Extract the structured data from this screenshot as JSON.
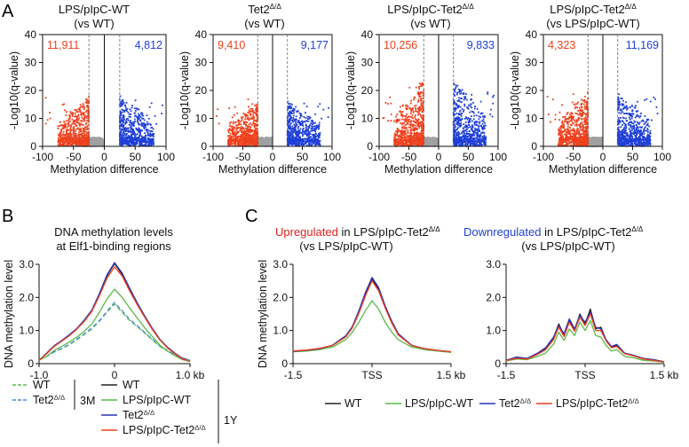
{
  "panel_letters": [
    "A",
    "B",
    "C"
  ],
  "chart_data": [
    {
      "type": "scatter",
      "id": "volcano-1",
      "title": "LPS/pIpC-WT",
      "title_sub": "(vs WT)",
      "xlabel": "Methylation difference",
      "ylabel": "-Log10(q-value)",
      "xlim": [
        -100,
        100
      ],
      "ylim": [
        0,
        40
      ],
      "xticks": [
        -100,
        -50,
        0,
        50,
        100
      ],
      "yticks": [
        0,
        10,
        20,
        30,
        40
      ],
      "count_left": "11,911",
      "count_right": "4,812",
      "color_left": "#f0401c",
      "color_right": "#1f3fd8",
      "color_ns": "#a0a0a0",
      "cutoff_diff": 25,
      "spread": 0.55
    },
    {
      "type": "scatter",
      "id": "volcano-2",
      "title": "Tet2Δ/Δ",
      "title_sub": "(vs WT)",
      "xlabel": "Methylation difference",
      "ylabel": "-Log10(q-value)",
      "xlim": [
        -100,
        100
      ],
      "ylim": [
        0,
        40
      ],
      "xticks": [
        -100,
        -50,
        0,
        50,
        100
      ],
      "yticks": [
        0,
        10,
        20,
        30,
        40
      ],
      "count_left": "9,410",
      "count_right": "9,177",
      "color_left": "#f0401c",
      "color_right": "#1f3fd8",
      "color_ns": "#a0a0a0",
      "cutoff_diff": 25,
      "spread": 0.5
    },
    {
      "type": "scatter",
      "id": "volcano-3",
      "title": "LPS/pIpC-Tet2Δ/Δ",
      "title_sub": "(vs WT)",
      "xlabel": "Methylation difference",
      "ylabel": "-Log10(q-value)",
      "xlim": [
        -100,
        100
      ],
      "ylim": [
        0,
        40
      ],
      "xticks": [
        -100,
        -50,
        0,
        50,
        100
      ],
      "yticks": [
        0,
        10,
        20,
        30,
        40
      ],
      "count_left": "10,256",
      "count_right": "9,833",
      "color_left": "#f0401c",
      "color_right": "#1f3fd8",
      "color_ns": "#a0a0a0",
      "cutoff_diff": 25,
      "spread": 0.75
    },
    {
      "type": "scatter",
      "id": "volcano-4",
      "title": "LPS/pIpC-Tet2Δ/Δ",
      "title_sub": "(vs LPS/pIpC-WT)",
      "xlabel": "Methylation difference",
      "ylabel": "-Log10(q-value)",
      "xlim": [
        -100,
        100
      ],
      "ylim": [
        0,
        40
      ],
      "xticks": [
        -100,
        -50,
        0,
        50,
        100
      ],
      "yticks": [
        0,
        10,
        20,
        30,
        40
      ],
      "count_left": "4,323",
      "count_right": "11,169",
      "color_left": "#f0401c",
      "color_right": "#1f3fd8",
      "color_ns": "#a0a0a0",
      "cutoff_diff": 25,
      "spread": 0.6
    },
    {
      "type": "line",
      "id": "profile-b",
      "title_line1": "DNA methylation levels",
      "title_line2": "at Elf1-binding regions",
      "ylabel": "DNA methylation level",
      "xlim": [
        -1.0,
        1.0
      ],
      "ylim": [
        0,
        3.0
      ],
      "xticks": [
        -1.0,
        0,
        1.0
      ],
      "xtick_labels": [
        "-1.0",
        "0",
        "1.0 kb"
      ],
      "yticks": [
        0,
        1.0,
        2.0,
        3.0
      ],
      "ytick_labels": [
        "0",
        "1.0",
        "2.0",
        "3.0"
      ],
      "x": [
        -1.0,
        -0.9,
        -0.8,
        -0.7,
        -0.6,
        -0.5,
        -0.4,
        -0.3,
        -0.2,
        -0.1,
        0.0,
        0.1,
        0.2,
        0.3,
        0.4,
        0.5,
        0.6,
        0.7,
        0.8,
        0.9,
        1.0
      ],
      "series": [
        {
          "name": "WT (3M)",
          "color": "#5cb84a",
          "dash": true,
          "values": [
            0.12,
            0.22,
            0.35,
            0.45,
            0.57,
            0.72,
            0.88,
            1.05,
            1.28,
            1.55,
            1.8,
            1.55,
            1.3,
            1.12,
            0.92,
            0.72,
            0.52,
            0.38,
            0.26,
            0.16,
            0.1
          ]
        },
        {
          "name": "Tet2Δ/Δ (3M)",
          "color": "#3f8fd8",
          "dash": true,
          "values": [
            0.12,
            0.22,
            0.36,
            0.46,
            0.58,
            0.74,
            0.9,
            1.08,
            1.3,
            1.58,
            1.85,
            1.6,
            1.34,
            1.15,
            0.94,
            0.74,
            0.54,
            0.4,
            0.27,
            0.17,
            0.11
          ]
        },
        {
          "name": "WT (1Y)",
          "color": "#222222",
          "dash": false,
          "values": [
            0.1,
            0.3,
            0.52,
            0.68,
            0.85,
            1.05,
            1.3,
            1.6,
            2.1,
            2.65,
            3.02,
            2.7,
            2.25,
            1.82,
            1.42,
            1.05,
            0.72,
            0.48,
            0.3,
            0.14,
            0.08
          ]
        },
        {
          "name": "LPS/pIpC-WT (1Y)",
          "color": "#5cb84a",
          "dash": false,
          "values": [
            0.1,
            0.22,
            0.4,
            0.52,
            0.65,
            0.8,
            0.98,
            1.2,
            1.55,
            1.95,
            2.25,
            2.0,
            1.68,
            1.38,
            1.08,
            0.82,
            0.56,
            0.38,
            0.24,
            0.12,
            0.06
          ]
        },
        {
          "name": "Tet2Δ/Δ (1Y)",
          "color": "#2834b8",
          "dash": false,
          "values": [
            0.1,
            0.32,
            0.54,
            0.7,
            0.87,
            1.06,
            1.32,
            1.62,
            2.12,
            2.68,
            3.05,
            2.74,
            2.28,
            1.84,
            1.44,
            1.07,
            0.74,
            0.5,
            0.32,
            0.16,
            0.08
          ]
        },
        {
          "name": "LPS/pIpC-Tet2Δ/Δ (1Y)",
          "color": "#f0401c",
          "dash": false,
          "values": [
            0.1,
            0.3,
            0.52,
            0.68,
            0.84,
            1.04,
            1.28,
            1.58,
            2.05,
            2.58,
            2.92,
            2.65,
            2.2,
            1.78,
            1.4,
            1.03,
            0.72,
            0.48,
            0.3,
            0.14,
            0.08
          ]
        }
      ]
    },
    {
      "type": "line",
      "id": "profile-c-up",
      "title_red": "Upregulated",
      "title_rest": " in LPS/pIpC-Tet2Δ/Δ",
      "title_line2": "(vs LPS/pIpC-WT)",
      "ylabel": "DNA methylation level",
      "xlim": [
        -1.5,
        1.5
      ],
      "ylim": [
        0,
        3.0
      ],
      "xticks": [
        -1.5,
        0,
        1.5
      ],
      "xtick_labels": [
        "-1.5",
        "TSS",
        "1.5 kb"
      ],
      "yticks": [
        0,
        1.0,
        2.0,
        3.0
      ],
      "ytick_labels": [
        "0",
        "1.0",
        "2.0",
        "3.0"
      ],
      "x": [
        -1.5,
        -1.25,
        -1.0,
        -0.75,
        -0.5,
        -0.375,
        -0.25,
        -0.125,
        0.0,
        0.125,
        0.25,
        0.375,
        0.5,
        0.75,
        1.0,
        1.25,
        1.5
      ],
      "series": [
        {
          "name": "WT",
          "color": "#222222",
          "values": [
            0.38,
            0.4,
            0.45,
            0.55,
            0.82,
            1.1,
            1.55,
            2.1,
            2.55,
            2.25,
            1.7,
            1.25,
            0.88,
            0.55,
            0.45,
            0.4,
            0.36
          ]
        },
        {
          "name": "LPS/pIpC-WT",
          "color": "#5cb84a",
          "values": [
            0.36,
            0.38,
            0.42,
            0.5,
            0.72,
            0.95,
            1.25,
            1.6,
            1.9,
            1.65,
            1.25,
            0.95,
            0.72,
            0.5,
            0.42,
            0.38,
            0.34
          ]
        },
        {
          "name": "Tet2Δ/Δ",
          "color": "#2834b8",
          "values": [
            0.37,
            0.4,
            0.45,
            0.56,
            0.84,
            1.12,
            1.6,
            2.15,
            2.6,
            2.3,
            1.75,
            1.28,
            0.9,
            0.56,
            0.45,
            0.4,
            0.36
          ]
        },
        {
          "name": "LPS/pIpC-Tet2Δ/Δ",
          "color": "#f0401c",
          "values": [
            0.38,
            0.41,
            0.46,
            0.55,
            0.8,
            1.08,
            1.52,
            2.05,
            2.5,
            2.2,
            1.68,
            1.22,
            0.86,
            0.55,
            0.45,
            0.4,
            0.36
          ]
        }
      ]
    },
    {
      "type": "line",
      "id": "profile-c-down",
      "title_blue": "Downregulated",
      "title_rest": " in LPS/pIpC-Tet2Δ/Δ",
      "title_line2": "(vs LPS/pIpC-WT)",
      "ylabel": "",
      "xlim": [
        -1.5,
        1.5
      ],
      "ylim": [
        0,
        3.0
      ],
      "xticks": [
        -1.5,
        0,
        1.5
      ],
      "xtick_labels": [
        "-1.5",
        "TSS",
        "1.5 kb"
      ],
      "yticks": [
        0,
        1.0,
        2.0,
        3.0
      ],
      "ytick_labels": [
        "0",
        "1.0",
        "2.0",
        "3.0"
      ],
      "x": [
        -1.5,
        -1.3,
        -1.1,
        -0.9,
        -0.75,
        -0.6,
        -0.5,
        -0.4,
        -0.3,
        -0.2,
        -0.1,
        0.0,
        0.1,
        0.2,
        0.3,
        0.4,
        0.5,
        0.6,
        0.75,
        0.9,
        1.1,
        1.3,
        1.5
      ],
      "series": [
        {
          "name": "WT",
          "color": "#222222",
          "values": [
            0.1,
            0.18,
            0.15,
            0.3,
            0.45,
            0.78,
            1.2,
            0.85,
            1.3,
            1.0,
            1.5,
            1.2,
            1.65,
            1.05,
            1.1,
            0.7,
            0.5,
            0.55,
            0.3,
            0.25,
            0.15,
            0.12,
            0.05
          ]
        },
        {
          "name": "LPS/pIpC-WT",
          "color": "#5cb84a",
          "values": [
            0.08,
            0.14,
            0.12,
            0.22,
            0.32,
            0.58,
            0.95,
            0.7,
            1.05,
            0.85,
            1.25,
            1.0,
            1.3,
            0.85,
            0.8,
            0.55,
            0.38,
            0.42,
            0.22,
            0.18,
            0.1,
            0.08,
            0.04
          ]
        },
        {
          "name": "Tet2Δ/Δ",
          "color": "#2834b8",
          "values": [
            0.1,
            0.2,
            0.16,
            0.32,
            0.48,
            0.8,
            1.15,
            0.9,
            1.35,
            1.05,
            1.45,
            1.25,
            1.55,
            1.1,
            1.05,
            0.72,
            0.52,
            0.58,
            0.32,
            0.26,
            0.16,
            0.12,
            0.06
          ]
        },
        {
          "name": "LPS/pIpC-Tet2Δ/Δ",
          "color": "#f0401c",
          "values": [
            0.09,
            0.16,
            0.14,
            0.28,
            0.42,
            0.72,
            1.1,
            0.82,
            1.25,
            0.98,
            1.4,
            1.15,
            1.5,
            1.0,
            1.0,
            0.68,
            0.48,
            0.52,
            0.3,
            0.24,
            0.14,
            0.1,
            0.05
          ]
        }
      ]
    }
  ],
  "legend_b": {
    "group_3m": "3M",
    "group_1y": "1Y",
    "items_3m": [
      {
        "label": "WT",
        "color": "#5cb84a",
        "dash": true
      },
      {
        "label": "Tet2Δ/Δ",
        "color": "#3f8fd8",
        "dash": true
      }
    ],
    "items_1y": [
      {
        "label": "WT",
        "color": "#222222",
        "dash": false
      },
      {
        "label": "LPS/pIpC-WT",
        "color": "#5cb84a",
        "dash": false
      },
      {
        "label": "Tet2Δ/Δ",
        "color": "#2834b8",
        "dash": false
      },
      {
        "label": "LPS/pIpC-Tet2Δ/Δ",
        "color": "#f0401c",
        "dash": false
      }
    ]
  },
  "legend_c": [
    {
      "label": "WT",
      "color": "#222222"
    },
    {
      "label": "LPS/pIpC-WT",
      "color": "#5cb84a"
    },
    {
      "label": "Tet2Δ/Δ",
      "color": "#2834b8"
    },
    {
      "label": "LPS/pIpC-Tet2Δ/Δ",
      "color": "#f0401c"
    }
  ]
}
